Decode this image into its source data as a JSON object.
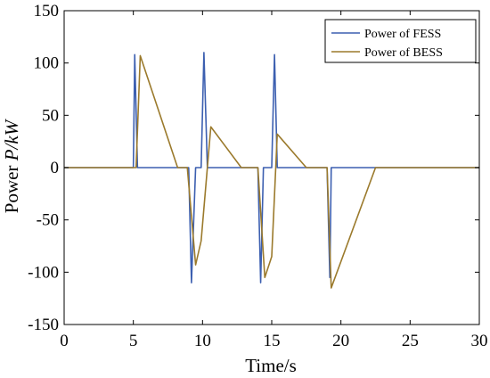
{
  "chart_data": {
    "type": "line",
    "xlabel": "Time/s",
    "ylabel_prefix": "Power ",
    "ylabel_var": "P/kW",
    "xlim": [
      0,
      30
    ],
    "ylim": [
      -150,
      150
    ],
    "xticks": [
      0,
      5,
      10,
      15,
      20,
      25,
      30
    ],
    "yticks": [
      -150,
      -100,
      -50,
      0,
      50,
      100,
      150
    ],
    "grid": false,
    "legend_position": "top-right",
    "series": [
      {
        "name": "Power of FESS",
        "color": "#3C5FB0",
        "points": [
          [
            0,
            0
          ],
          [
            5.0,
            0
          ],
          [
            5.1,
            108
          ],
          [
            5.3,
            0
          ],
          [
            9.0,
            0
          ],
          [
            9.2,
            -110
          ],
          [
            9.5,
            0
          ],
          [
            9.9,
            0
          ],
          [
            10.1,
            110
          ],
          [
            10.35,
            0
          ],
          [
            14.0,
            0
          ],
          [
            14.2,
            -110
          ],
          [
            14.4,
            0
          ],
          [
            15.0,
            0
          ],
          [
            15.2,
            108
          ],
          [
            15.4,
            0
          ],
          [
            19.0,
            0
          ],
          [
            19.2,
            -105
          ],
          [
            19.3,
            0
          ],
          [
            30,
            0
          ]
        ]
      },
      {
        "name": "Power of BESS",
        "color": "#9B7A2C",
        "points": [
          [
            0,
            0
          ],
          [
            5.2,
            0
          ],
          [
            5.5,
            107
          ],
          [
            8.2,
            0
          ],
          [
            8.9,
            0
          ],
          [
            9.5,
            -93
          ],
          [
            9.9,
            -70
          ],
          [
            10.6,
            39
          ],
          [
            12.8,
            0
          ],
          [
            14.0,
            0
          ],
          [
            14.5,
            -105
          ],
          [
            15.0,
            -85
          ],
          [
            15.4,
            32
          ],
          [
            17.5,
            0
          ],
          [
            19.0,
            0
          ],
          [
            19.3,
            -115
          ],
          [
            22.5,
            0
          ],
          [
            30,
            0
          ]
        ]
      }
    ]
  }
}
